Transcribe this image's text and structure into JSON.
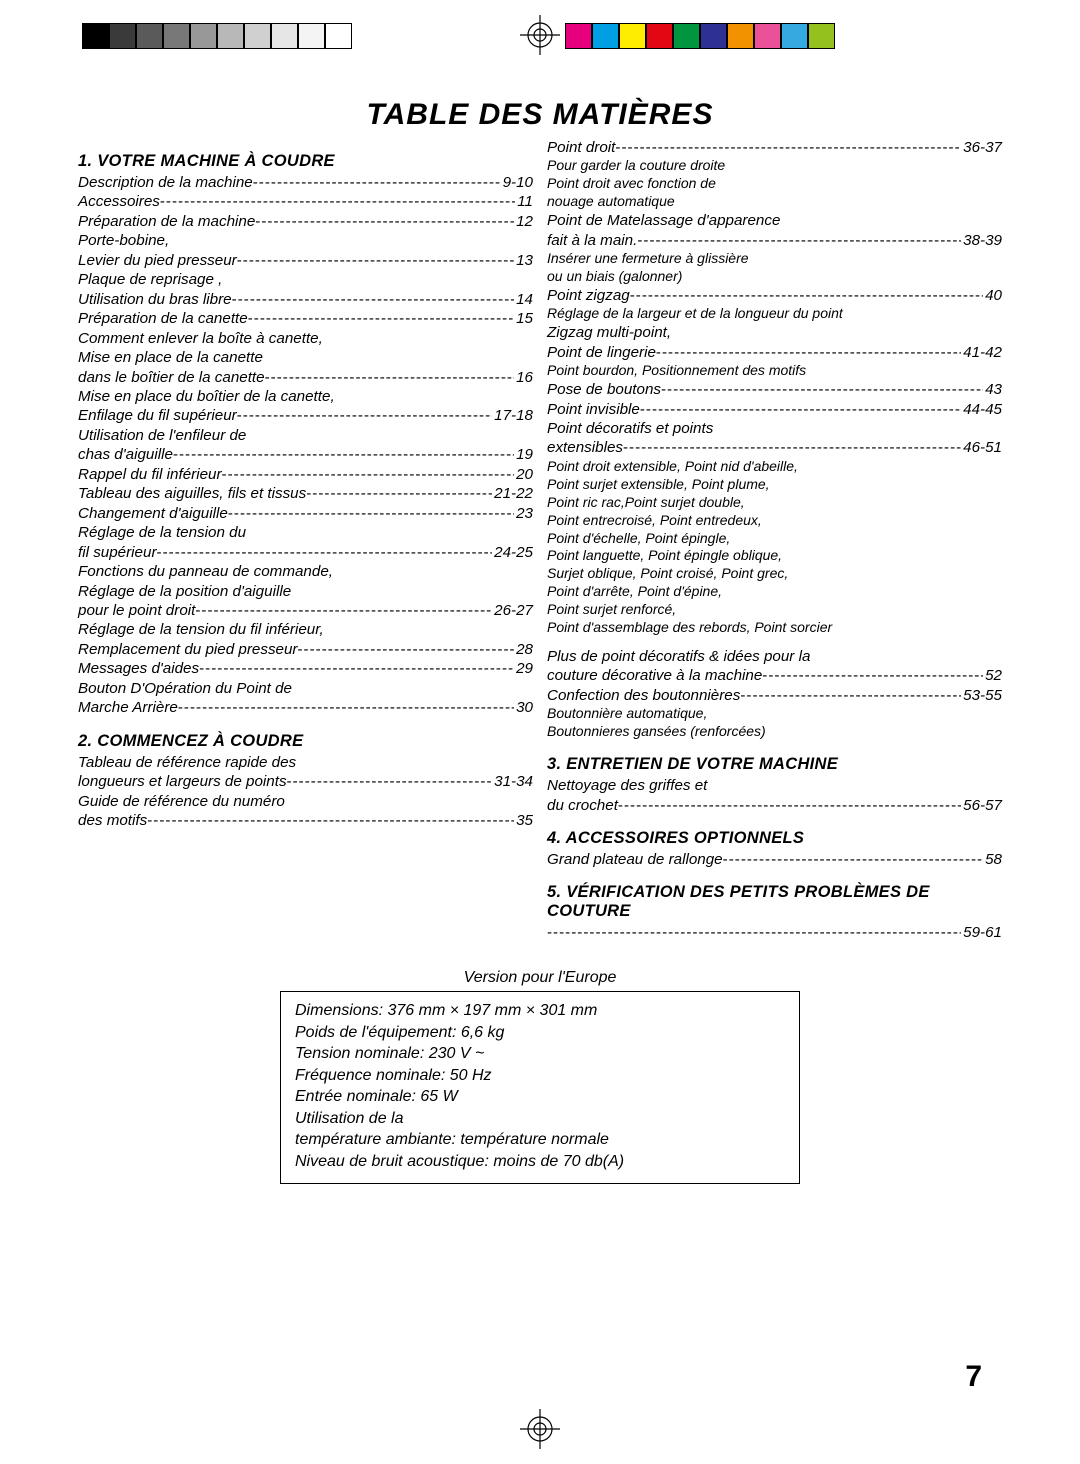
{
  "title": "TABLE DES MATIÈRES",
  "page_number": "7",
  "version_label": "Version pour l'Europe",
  "colorbar_left": [
    "#000000",
    "#3a3a3a",
    "#5a5a5a",
    "#787878",
    "#989898",
    "#b8b8b8",
    "#d0d0d0",
    "#e6e6e6",
    "#f4f4f4",
    "#ffffff"
  ],
  "colorbar_right": [
    "#e6007e",
    "#009fe3",
    "#ffed00",
    "#e30613",
    "#009640",
    "#2e3192",
    "#f39200",
    "#ea5198",
    "#36a9e1",
    "#95c11f"
  ],
  "sections_left": [
    {
      "heading": "1. VOTRE MACHINE À COUDRE",
      "items": [
        {
          "lines": [
            "Description de la machine"
          ],
          "page": "9-10"
        },
        {
          "lines": [
            "Accessoires"
          ],
          "page": "11"
        },
        {
          "lines": [
            "Préparation de la machine"
          ],
          "page": "12"
        },
        {
          "lines": [
            "Porte-bobine,",
            "Levier du pied presseur"
          ],
          "page": "13"
        },
        {
          "lines": [
            "Plaque de reprisage ,",
            "Utilisation du bras libre"
          ],
          "page": "14"
        },
        {
          "lines": [
            "Préparation de la canette"
          ],
          "page": "15"
        },
        {
          "lines": [
            "Comment enlever la boîte à canette,",
            "Mise en place de la canette",
            "dans le boîtier de la canette"
          ],
          "page": "16"
        },
        {
          "lines": [
            "Mise en place du boîtier de la canette,",
            "Enfilage du fil supérieur"
          ],
          "page": "17-18"
        },
        {
          "lines": [
            "Utilisation de l'enfileur de",
            "chas d'aiguille"
          ],
          "page": "19"
        },
        {
          "lines": [
            "Rappel du fil inférieur"
          ],
          "page": "20"
        },
        {
          "lines": [
            "Tableau des aiguilles, fils et tissus"
          ],
          "page": "21-22"
        },
        {
          "lines": [
            "Changement d'aiguille"
          ],
          "page": "23"
        },
        {
          "lines": [
            "Réglage de la tension du",
            "fil supérieur"
          ],
          "page": "24-25"
        },
        {
          "lines": [
            "Fonctions du panneau de commande,"
          ],
          "page": ""
        },
        {
          "lines": [
            "Réglage de la position d'aiguille",
            "pour le point droit"
          ],
          "page": "26-27"
        },
        {
          "lines": [
            "Réglage de la tension du fil inférieur,",
            "Remplacement du pied presseur"
          ],
          "page": "28"
        },
        {
          "lines": [
            "Messages d'aides"
          ],
          "page": "29"
        },
        {
          "lines": [
            "Bouton D'Opération du Point de"
          ],
          "page": ""
        },
        {
          "lines": [
            "Marche Arrière"
          ],
          "page": "30"
        }
      ]
    },
    {
      "heading": "2. COMMENCEZ À COUDRE",
      "items": [
        {
          "lines": [
            "Tableau de référence rapide des",
            " longueurs et largeurs de points"
          ],
          "page": "31-34"
        },
        {
          "lines": [
            "Guide de référence du numéro",
            " des motifs"
          ],
          "page": "35"
        }
      ]
    }
  ],
  "sections_right": [
    {
      "heading": "",
      "items": [
        {
          "lines": [
            "Point droit"
          ],
          "page": "36-37",
          "note": "Pour garder la couture droite\nPoint droit avec fonction de\nnouage automatique"
        },
        {
          "lines": [
            "Point de Matelassage d'apparence",
            "fait à la main."
          ],
          "page": "38-39",
          "note": "Insérer une fermeture à glissière\nou un biais (galonner)"
        },
        {
          "lines": [
            "Point zigzag"
          ],
          "page": "40",
          "note": "Réglage de la largeur et de la longueur du point"
        },
        {
          "lines": [
            "Zigzag multi-point,",
            "Point de lingerie"
          ],
          "page": "41-42",
          "note": "Point bourdon, Positionnement des motifs"
        },
        {
          "lines": [
            "Pose de boutons"
          ],
          "page": "43"
        },
        {
          "lines": [
            "Point invisible"
          ],
          "page": "44-45"
        },
        {
          "lines": [
            "Point décoratifs et points",
            "extensibles"
          ],
          "page": "46-51",
          "note": "Point droit extensible, Point nid d'abeille,\nPoint surjet extensible, Point plume,\nPoint ric rac,Point surjet double,\nPoint entrecroisé, Point entredeux,\nPoint d'échelle, Point épingle,\nPoint languette, Point épingle oblique,\nSurjet oblique, Point croisé, Point grec,\nPoint d'arrête, Point d'épine,\nPoint surjet renforcé,\nPoint d'assemblage des rebords, Point sorcier"
        },
        {
          "lines": [
            "Plus de point décoratifs & idées pour la",
            "couture décorative à la machine"
          ],
          "page": "52",
          "pre_gap": true
        },
        {
          "lines": [
            "Confection des boutonnières"
          ],
          "page": "53-55",
          "note": "Boutonnière automatique,\nBoutonnieres gansées (renforcées)"
        }
      ]
    },
    {
      "heading": "3. ENTRETIEN DE VOTRE MACHINE",
      "items": [
        {
          "lines": [
            "Nettoyage des griffes et",
            "du crochet"
          ],
          "page": "56-57"
        }
      ]
    },
    {
      "heading": "4. ACCESSOIRES OPTIONNELS",
      "items": [
        {
          "lines": [
            "Grand plateau de rallonge"
          ],
          "page": "58"
        }
      ]
    },
    {
      "heading": "5. VÉRIFICATION DES PETITS PROBLÈMES DE COUTURE",
      "items": [
        {
          "lines": [
            ""
          ],
          "page": "59-61"
        }
      ]
    }
  ],
  "specs": [
    "Dimensions: 376 mm × 197 mm × 301 mm",
    "Poids de l'équipement: 6,6 kg",
    "Tension nominale: 230 V ~",
    "Fréquence nominale: 50 Hz",
    "Entrée nominale: 65 W",
    "Utilisation de la",
    "température ambiante: température normale",
    "Niveau de bruit acoustique: moins de 70 db(A)"
  ]
}
